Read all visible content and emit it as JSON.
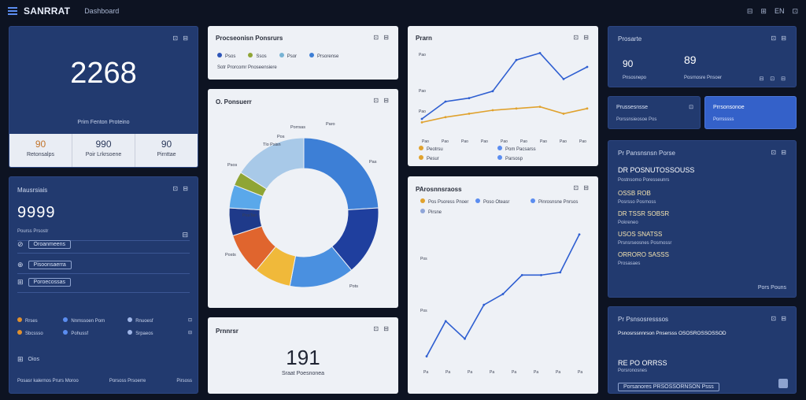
{
  "topbar": {
    "brand": "SANRRAT",
    "crumb": "Dashboard",
    "menu_icon": "menu-icon",
    "right": [
      "⊟",
      "⊞",
      "EN",
      "⊡"
    ]
  },
  "kpi1": {
    "value": "2268",
    "caption": "Prim Fenton Proteino",
    "stats": [
      {
        "value": "90",
        "label": "Retonsalps"
      },
      {
        "value": "990",
        "label": "Poir Lrkrsoene"
      },
      {
        "value": "90",
        "label": "Pirnttae"
      }
    ]
  },
  "metrics": {
    "title": "Mausrsiais",
    "value": "9999",
    "sub": "Pourss Prsostr",
    "items": [
      "Oroanmeens",
      "Pisoonsaerra",
      "Poroecossas"
    ],
    "legend": [
      {
        "label": "Rrses",
        "color": "#e0902e"
      },
      {
        "label": "Nnmssoen Pom",
        "color": "#5b8df0"
      },
      {
        "label": "Rnuoesf",
        "color": "#9fb6e8"
      },
      {
        "label": "Sbcssso",
        "color": "#e0902e"
      },
      {
        "label": "Pohussf",
        "color": "#5b8df0"
      },
      {
        "label": "Srpaeos",
        "color": "#9fb6e8"
      }
    ],
    "footer_left": "Oios",
    "footer_items": [
      "Posasr kalernos Prurs Moroo",
      "Porsoss Prsoerre",
      "Pirsoss"
    ]
  },
  "legend_card": {
    "title": "Procseonisn Ponsrurs",
    "items": [
      {
        "label": "Psos",
        "color": "#2d55b8"
      },
      {
        "label": "Ssos",
        "color": "#8fa535"
      },
      {
        "label": "Psor",
        "color": "#77b3d4"
      },
      {
        "label": "Prsorense",
        "color": "#3d7fd6"
      }
    ],
    "sub": "Sotr Prorcomr Pnoseensiere"
  },
  "donut": {
    "title": "O. Ponsuerr",
    "labels": [
      "Pas",
      "Pots",
      "Porrsas",
      "Psos",
      "Posts",
      "PosTsn",
      "Pos",
      "Tlo Psisn",
      "Paro"
    ]
  },
  "donut_data": {
    "type": "pie",
    "values": [
      24,
      15,
      14,
      8,
      9,
      6,
      5,
      3,
      16
    ]
  },
  "small_card": {
    "title": "Prnnrsr",
    "value": "191",
    "caption": "Sraat Poesnonea"
  },
  "line_top": {
    "title": "Prarn",
    "y_label": "Pao",
    "y_low": "Pao",
    "y_bot": "Pao",
    "x_labels": [
      "Pao",
      "Pao",
      "Pao",
      "Pao",
      "Pao",
      "Pao",
      "Pao",
      "Pao",
      "Pao"
    ],
    "legend": [
      {
        "label": "Peotrsu",
        "color": "#e0a22e"
      },
      {
        "label": "Pom Pacsarss",
        "color": "#5b8df0"
      },
      {
        "label": "Pesur",
        "color": "#e0a22e"
      },
      {
        "label": "Parsosp",
        "color": "#5b8df0"
      }
    ]
  },
  "chart_data": [
    {
      "type": "line",
      "series": [
        {
          "values": [
            10,
            20,
            22,
            26,
            44,
            48,
            33,
            40
          ]
        },
        {
          "values": [
            8,
            11,
            13,
            15,
            16,
            17,
            13,
            16
          ]
        }
      ]
    },
    {
      "type": "line",
      "series": [
        {
          "values": [
            2,
            28,
            15,
            40,
            48,
            62,
            62,
            64,
            92
          ]
        }
      ]
    }
  ],
  "line_bottom": {
    "title": "PArosnnsraoss",
    "y_mid": "Pos",
    "y_low": "Pos",
    "x_labels": [
      "Pa",
      "Pa",
      "Pa",
      "Pa",
      "Pa",
      "Pa",
      "Pa",
      "Pa"
    ],
    "legend": [
      {
        "label": "Pos Psoress Pnoer",
        "color": "#e0a22e"
      },
      {
        "label": "Poso Oteasr",
        "color": "#5b8df0"
      },
      {
        "label": "Pinrosnsne Pnrsos",
        "color": "#5b8df0"
      },
      {
        "label": "Pirsne",
        "color": "#8fa5d8"
      }
    ]
  },
  "right_top": {
    "title": "Prosarte",
    "left_value": "90",
    "left_sub": "Pnsosnepo",
    "right_value": "89",
    "right_sub": "Posrnosre Pnsoer"
  },
  "right_mid": {
    "a_title": "Prussesnsse",
    "a_sub": "Porssnsieosoe Pos",
    "b_title": "Prrsonsonoe",
    "b_sub": "Porrsssss"
  },
  "right_list": {
    "title": "Pr Pansnsnsn Porse",
    "items": [
      {
        "head": "DR POSNUTOSSOUSS",
        "sub": "Postnsomo Poresseunrs"
      },
      {
        "head": "OSSB ROB",
        "sub": "Posrsso Posrnoss"
      },
      {
        "head": "DR TSSR SOBSR",
        "sub": "Pokreneo"
      },
      {
        "head": "USOS SNATSS",
        "sub": "Prsnsrseosnes Posrnossr"
      },
      {
        "head": "ORRORO SASSS",
        "sub": "Prosasaes"
      }
    ],
    "footer": "Pors Pouns"
  },
  "right_bottom": {
    "title": "Pr Psnsosresssos",
    "row1": "Psnosrssnnrson Pnsersss OSOSROSSOSSOD",
    "row2": "RE PO ORRSS",
    "row3": "Porsronosnes",
    "pill": "Porsanores PRSOSSORNSON Psss"
  }
}
